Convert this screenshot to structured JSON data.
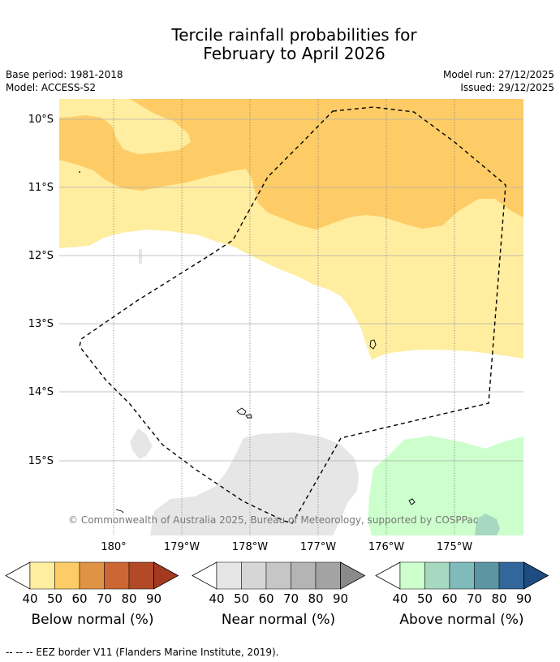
{
  "title_line1": "Tercile rainfall probabilities for",
  "title_line2": "February to April 2026",
  "base_period": "Base period: 1981-2018",
  "model": "Model: ACCESS-S2",
  "model_run": "Model run: 27/12/2025",
  "issued": "Issued: 29/12/2025",
  "lat_labels": [
    "10°S",
    "11°S",
    "12°S",
    "13°S",
    "14°S",
    "15°S"
  ],
  "lon_labels": [
    "180°",
    "179°W",
    "178°W",
    "177°W",
    "176°W",
    "175°W"
  ],
  "copyright": "© Commonwealth of Australia 2025, Bureau of Meteorology, supported by COSPPac",
  "colorbars": [
    {
      "name": "below",
      "label": "Below normal (%)",
      "colors": [
        "#FFEDA0",
        "#FECC66",
        "#E09245",
        "#CC6633",
        "#B24A28"
      ],
      "arrow": "#A33A20",
      "ticks": [
        "40",
        "50",
        "60",
        "70",
        "80",
        "90"
      ]
    },
    {
      "name": "near",
      "label": "Near normal (%)",
      "colors": [
        "#E6E6E6",
        "#D6D6D6",
        "#C6C6C6",
        "#B4B4B4",
        "#A3A3A3"
      ],
      "arrow": "#8A8A8A",
      "ticks": [
        "40",
        "50",
        "60",
        "70",
        "80",
        "90"
      ]
    },
    {
      "name": "above",
      "label": "Above normal (%)",
      "colors": [
        "#CCFFCC",
        "#A6D9C0",
        "#80BABA",
        "#5C96A3",
        "#33669A"
      ],
      "arrow": "#1E4C80",
      "ticks": [
        "40",
        "50",
        "60",
        "70",
        "80",
        "90"
      ]
    }
  ],
  "footnote": "--  --  -- EEZ border V11 (Flanders Marine Institute, 2019).",
  "map_colors": {
    "below40": "#FFEDA0",
    "below50": "#FECC66",
    "near40": "#E6E6E6",
    "above40": "#CCFFCC",
    "above50": "#A6D9C0"
  }
}
